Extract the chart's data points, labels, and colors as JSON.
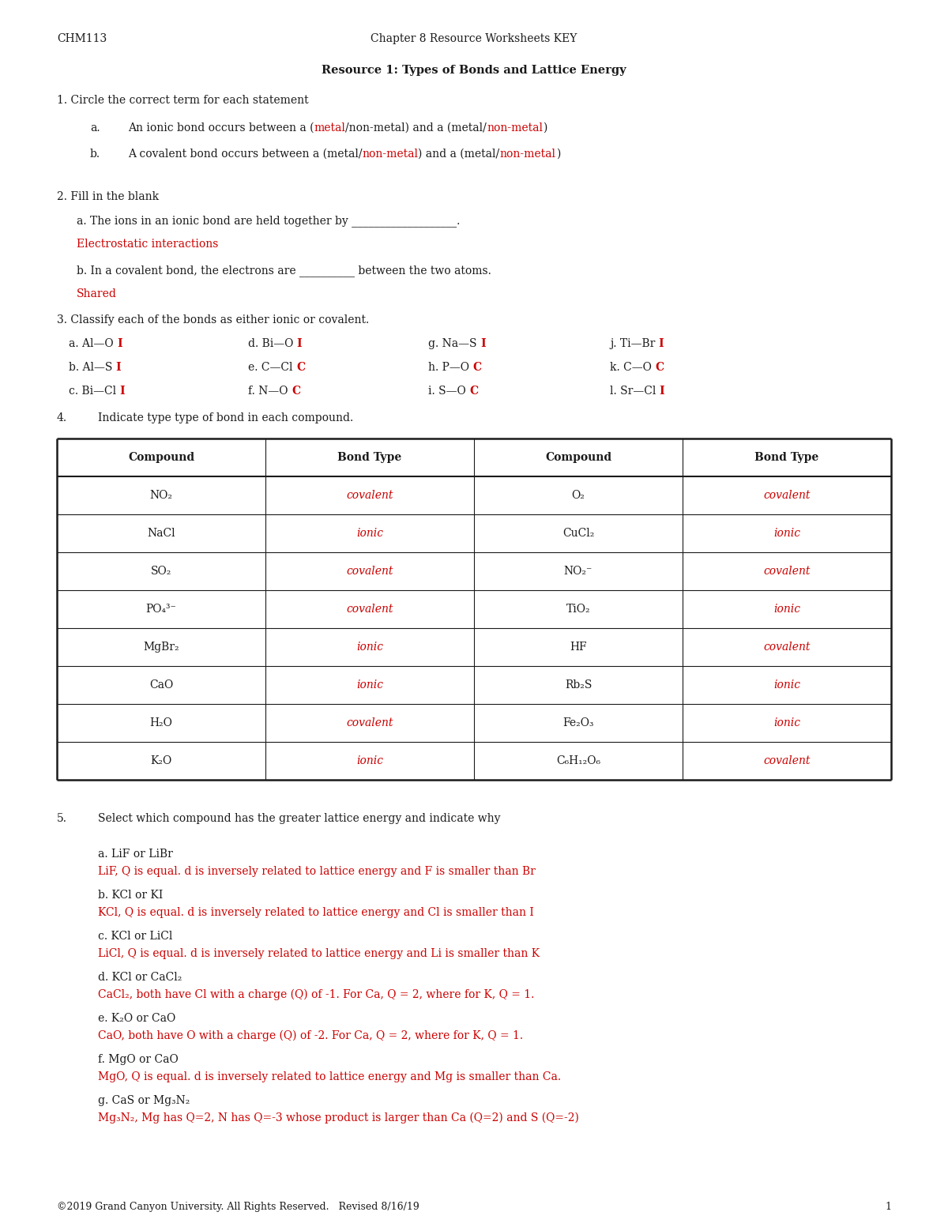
{
  "page_width": 12.0,
  "page_height": 15.53,
  "bg_color": "#ffffff",
  "black": "#1a1a1a",
  "red": "#cc0000",
  "header_left": "CHM113",
  "header_center": "Chapter 8 Resource Worksheets KEY",
  "title": "Resource 1: Types of Bonds and Lattice Energy",
  "q1_header": "1. Circle the correct term for each statement",
  "q1a_prefix": "a.",
  "q1a_parts": [
    {
      "text": "An ionic bond occurs between a (",
      "color": "black"
    },
    {
      "text": "metal",
      "color": "red"
    },
    {
      "text": "/non-metal) and a (metal/",
      "color": "black"
    },
    {
      "text": "non-metal",
      "color": "red"
    },
    {
      "text": ")",
      "color": "black"
    }
  ],
  "q1b_prefix": "b.",
  "q1b_parts": [
    {
      "text": "A covalent bond occurs between a (metal/",
      "color": "black"
    },
    {
      "text": "non-metal",
      "color": "red"
    },
    {
      "text": ") and a (metal/",
      "color": "black"
    },
    {
      "text": "non-metal",
      "color": "red"
    },
    {
      "text": ")",
      "color": "black"
    }
  ],
  "q2_header": "2. Fill in the blank",
  "q2a_black": "a. The ions in an ionic bond are held together by ___________________.",
  "q2a_red": "Electrostatic interactions",
  "q2b_black": "b. In a covalent bond, the electrons are __________ between the two atoms.",
  "q2b_red": "Shared",
  "q3_header": "3. Classify each of the bonds as either ionic or covalent.",
  "q3_rows": [
    [
      {
        "black": "a. Al—O ",
        "red": "I"
      },
      {
        "black": "d. Bi—O ",
        "red": "I"
      },
      {
        "black": "g. Na—S ",
        "red": "I"
      },
      {
        "black": "j. Ti—Br ",
        "red": "I"
      }
    ],
    [
      {
        "black": "b. Al—S ",
        "red": "I"
      },
      {
        "black": "e. C—Cl ",
        "red": "C"
      },
      {
        "black": "h. P—O ",
        "red": "C"
      },
      {
        "black": "k. C—O ",
        "red": "C"
      }
    ],
    [
      {
        "black": "c. Bi—Cl ",
        "red": "I"
      },
      {
        "black": "f. N—O ",
        "red": "C"
      },
      {
        "black": "i. S—O ",
        "red": "C"
      },
      {
        "black": "l. Sr—Cl ",
        "red": "I"
      }
    ]
  ],
  "q4_header": "4.",
  "q4_subheader": "Indicate type type of bond in each compound.",
  "q4_col_headers": [
    "Compound",
    "Bond Type",
    "Compound",
    "Bond Type"
  ],
  "q4_rows": [
    [
      "NO₂",
      "covalent",
      "O₂",
      "covalent"
    ],
    [
      "NaCl",
      "ionic",
      "CuCl₂",
      "ionic"
    ],
    [
      "SO₂",
      "covalent",
      "NO₂⁻",
      "covalent"
    ],
    [
      "PO₄³⁻",
      "covalent",
      "TiO₂",
      "ionic"
    ],
    [
      "MgBr₂",
      "ionic",
      "HF",
      "covalent"
    ],
    [
      "CaO",
      "ionic",
      "Rb₂S",
      "ionic"
    ],
    [
      "H₂O",
      "covalent",
      "Fe₂O₃",
      "ionic"
    ],
    [
      "K₂O",
      "ionic",
      "C₆H₁₂O₆",
      "covalent"
    ]
  ],
  "q5_header": "5.",
  "q5_subheader": "Select which compound has the greater lattice energy and indicate why",
  "q5_items": [
    {
      "label": "a. LiF or LiBr",
      "answer": "LiF, Q is equal. d is inversely related to lattice energy and F is smaller than Br"
    },
    {
      "label": "b. KCl or KI",
      "answer": "KCl, Q is equal. d is inversely related to lattice energy and Cl is smaller than I"
    },
    {
      "label": "c. KCl or LiCl",
      "answer": "LiCl, Q is equal. d is inversely related to lattice energy and Li is smaller than K"
    },
    {
      "label": "d. KCl or CaCl₂",
      "answer": "CaCl₂, both have Cl with a charge (Q) of -1. For Ca, Q = 2, where for K, Q = 1."
    },
    {
      "label": "e. K₂O or CaO",
      "answer": "CaO, both have O with a charge (Q) of -2. For Ca, Q = 2, where for K, Q = 1."
    },
    {
      "label": "f. MgO or CaO",
      "answer": "MgO, Q is equal. d is inversely related to lattice energy and Mg is smaller than Ca."
    },
    {
      "label": "g. CaS or Mg₃N₂",
      "answer": "Mg₃N₂, Mg has Q=2, N has Q=-3 whose product is larger than Ca (Q=2) and S (Q=-2)"
    }
  ],
  "footer": "©2019 Grand Canyon University. All Rights Reserved.   Revised 8/16/19",
  "footer_page": "1"
}
